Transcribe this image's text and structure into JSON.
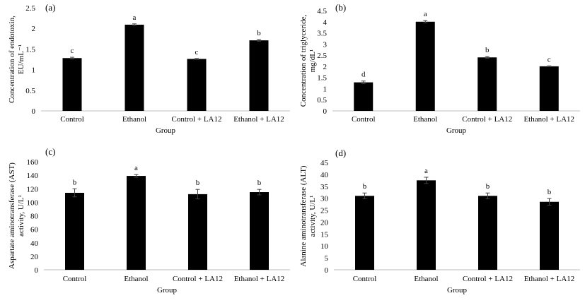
{
  "chart_data": [
    {
      "type": "bar",
      "panel_label": "(a)",
      "categories": [
        "Control",
        "Ethanol",
        "Control + LA12",
        "Ethanol + LA12"
      ],
      "values": [
        1.28,
        2.09,
        1.26,
        1.71
      ],
      "errors": [
        0.02,
        0.02,
        0.01,
        0.02
      ],
      "significance": [
        "c",
        "a",
        "c",
        "b"
      ],
      "xlabel": "Group",
      "ylabel_lines": [
        "Concentration of endotoxin,",
        "EU/mL⁻¹"
      ],
      "ylim": [
        0,
        2.5
      ],
      "yticks": [
        0,
        0.5,
        1,
        1.5,
        2,
        2.5
      ],
      "ytick_labels": [
        "0",
        "0.5",
        "1",
        "1.5",
        "2",
        "2.5"
      ],
      "grid": false,
      "bar_color": "#000000"
    },
    {
      "type": "bar",
      "panel_label": "(b)",
      "categories": [
        "Control",
        "Ethanol",
        "Control + LA12",
        "Ethanol + LA12"
      ],
      "values": [
        1.28,
        4.0,
        2.4,
        2.0
      ],
      "errors": [
        0.06,
        0.05,
        0.04,
        0.02
      ],
      "significance": [
        "d",
        "a",
        "b",
        "c"
      ],
      "xlabel": "Group",
      "ylabel_lines": [
        "Concentration of triglyceride,",
        "mg/dL¹"
      ],
      "ylim": [
        0,
        4.5
      ],
      "yticks": [
        0,
        0.5,
        1,
        1.5,
        2,
        2.5,
        3,
        3.5,
        4,
        4.5
      ],
      "ytick_labels": [
        "0",
        "0.5",
        "1",
        "1.5",
        "2",
        "2.5",
        "3",
        "3.5",
        "4",
        "4.5"
      ],
      "grid": false,
      "bar_color": "#000000"
    },
    {
      "type": "bar",
      "panel_label": "(c)",
      "categories": [
        "Control",
        "Ethanol",
        "Control + LA12",
        "Ethanol + LA12"
      ],
      "values": [
        114,
        139,
        112,
        115
      ],
      "errors": [
        6,
        2,
        7,
        4
      ],
      "significance": [
        "b",
        "a",
        "b",
        "b"
      ],
      "xlabel": "Group",
      "ylabel_lines": [
        "Aspartate aminotransferase (AST)",
        "activity, U/L¹"
      ],
      "ylim": [
        0,
        160
      ],
      "yticks": [
        0,
        20,
        40,
        60,
        80,
        100,
        120,
        140,
        160
      ],
      "ytick_labels": [
        "0",
        "20",
        "40",
        "60",
        "80",
        "100",
        "120",
        "140",
        "160"
      ],
      "grid": false,
      "bar_color": "#000000"
    },
    {
      "type": "bar",
      "panel_label": "(d)",
      "categories": [
        "Control",
        "Ethanol",
        "Control + LA12",
        "Ethanol + LA12"
      ],
      "values": [
        31,
        37.5,
        31,
        28.5
      ],
      "errors": [
        1.2,
        1.3,
        1.2,
        1.4
      ],
      "significance": [
        "b",
        "a",
        "b",
        "b"
      ],
      "xlabel": "Group",
      "ylabel_lines": [
        "Alanine aminotransferase (ALT)",
        "activity, U/L¹"
      ],
      "ylim": [
        0,
        45
      ],
      "yticks": [
        0,
        5,
        10,
        15,
        20,
        25,
        30,
        35,
        40,
        45
      ],
      "ytick_labels": [
        "0",
        "5",
        "10",
        "15",
        "20",
        "25",
        "30",
        "35",
        "40",
        "45"
      ],
      "grid": false,
      "bar_color": "#000000"
    }
  ]
}
